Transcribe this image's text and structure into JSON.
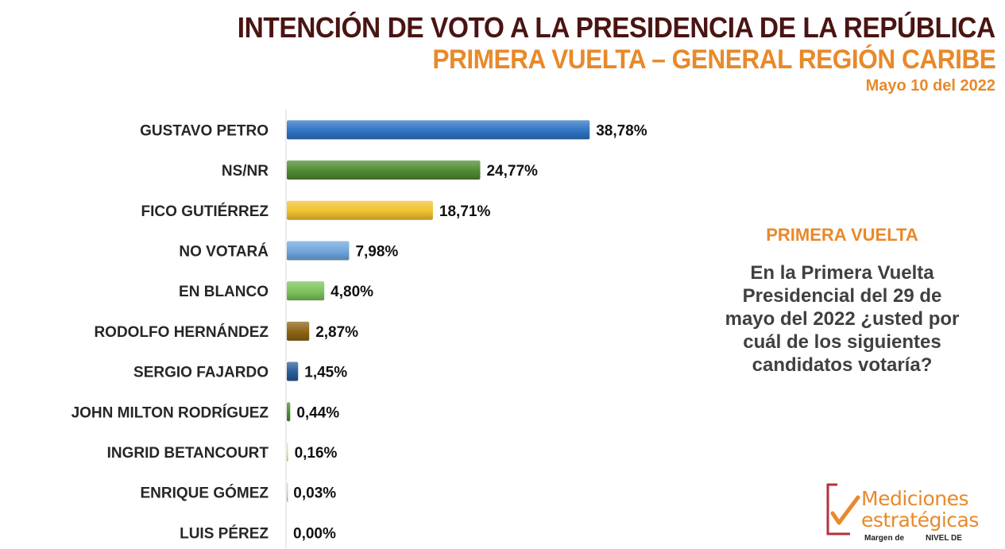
{
  "header": {
    "title": "INTENCIÓN DE VOTO A LA PRESIDENCIA DE LA REPÚBLICA",
    "subtitle": "PRIMERA VUELTA – GENERAL REGIÓN CARIBE",
    "date": "Mayo 10 del 2022"
  },
  "side_panel": {
    "heading": "PRIMERA VUELTA",
    "question": "En la Primera Vuelta Presidencial del 29 de mayo del 2022 ¿usted por cuál de los siguientes candidatos votaría?"
  },
  "logo": {
    "line1": "Mediciones",
    "line2": "estratégicas",
    "footnote_1": "Margen de",
    "footnote_2": "NIVEL DE"
  },
  "chart_data": {
    "type": "bar",
    "orientation": "horizontal",
    "categories": [
      "GUSTAVO PETRO",
      "NS/NR",
      "FICO GUTIÉRREZ",
      "NO VOTARÁ",
      "EN BLANCO",
      "RODOLFO HERNÁNDEZ",
      "SERGIO FAJARDO",
      "JOHN MILTON RODRÍGUEZ",
      "INGRID BETANCOURT",
      "ENRIQUE GÓMEZ",
      "LUIS PÉREZ"
    ],
    "values": [
      38.78,
      24.77,
      18.71,
      7.98,
      4.8,
      2.87,
      1.45,
      0.44,
      0.16,
      0.03,
      0.0
    ],
    "value_labels": [
      "38,78%",
      "24,77%",
      "18,71%",
      "7,98%",
      "4,80%",
      "2,87%",
      "1,45%",
      "0,44%",
      "0,16%",
      "0,03%",
      "0,00%"
    ],
    "colors": [
      "#2f74c4",
      "#4f8a32",
      "#f2c12e",
      "#6fa6dc",
      "#7cc25a",
      "#8c6414",
      "#2a5b98",
      "#4f8a32",
      "#f2d88a",
      "#cccccc",
      "#cccccc"
    ],
    "xlim": [
      0,
      40
    ],
    "grid": false,
    "legend": "none"
  }
}
